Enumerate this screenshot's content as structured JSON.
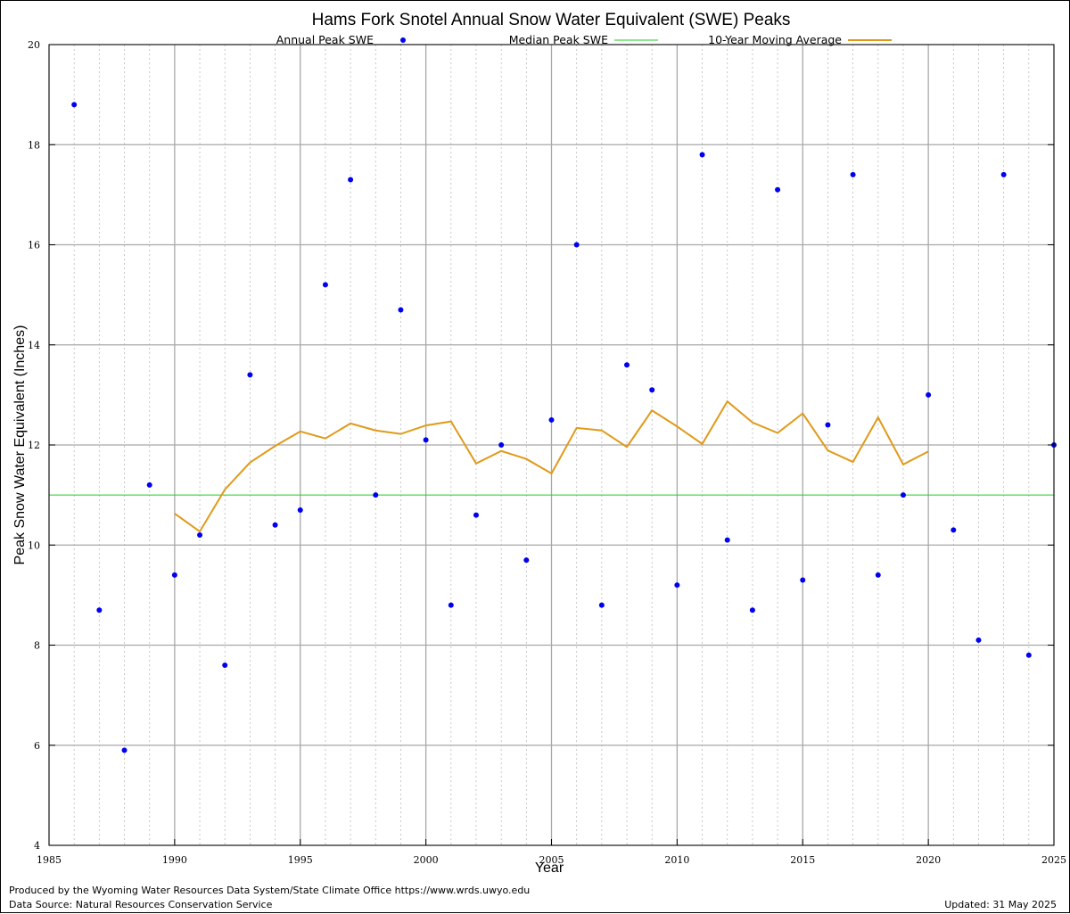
{
  "chart_data": {
    "type": "scatter",
    "title": "Hams Fork Snotel Annual Snow Water Equivalent (SWE) Peaks",
    "xlabel": "Year",
    "ylabel": "Peak Snow Water Equivalent (Inches)",
    "xlim": [
      1985,
      2025
    ],
    "ylim": [
      4,
      20
    ],
    "x_major_ticks": [
      1985,
      1990,
      1995,
      2000,
      2005,
      2010,
      2015,
      2020,
      2025
    ],
    "x_tick_labels": [
      "1985",
      "1990",
      "1995",
      "2000",
      "2005",
      "2010",
      "2015",
      "2020",
      "2025"
    ],
    "y_ticks": [
      4,
      6,
      8,
      10,
      12,
      14,
      16,
      18,
      20
    ],
    "y_tick_labels": [
      "4",
      "6",
      "8",
      "10",
      "12",
      "14",
      "16",
      "18",
      "20"
    ],
    "grid": "on",
    "legend_position": "top",
    "series": [
      {
        "name": "Annual Peak SWE",
        "type": "scatter",
        "color": "#0000ee",
        "points": [
          [
            1986,
            18.8
          ],
          [
            1987,
            8.7
          ],
          [
            1988,
            5.9
          ],
          [
            1989,
            11.2
          ],
          [
            1990,
            9.4
          ],
          [
            1991,
            10.2
          ],
          [
            1992,
            7.6
          ],
          [
            1993,
            13.4
          ],
          [
            1994,
            10.4
          ],
          [
            1995,
            10.7
          ],
          [
            1996,
            15.2
          ],
          [
            1997,
            17.3
          ],
          [
            1998,
            11.0
          ],
          [
            1999,
            14.7
          ],
          [
            2000,
            12.1
          ],
          [
            2001,
            8.8
          ],
          [
            2002,
            10.6
          ],
          [
            2003,
            12.0
          ],
          [
            2004,
            9.7
          ],
          [
            2005,
            12.5
          ],
          [
            2006,
            16.0
          ],
          [
            2007,
            8.8
          ],
          [
            2008,
            13.6
          ],
          [
            2009,
            13.1
          ],
          [
            2010,
            9.2
          ],
          [
            2011,
            17.8
          ],
          [
            2012,
            10.1
          ],
          [
            2013,
            8.7
          ],
          [
            2014,
            17.1
          ],
          [
            2015,
            9.3
          ],
          [
            2016,
            12.4
          ],
          [
            2017,
            17.4
          ],
          [
            2018,
            9.4
          ],
          [
            2019,
            11.0
          ],
          [
            2020,
            13.0
          ],
          [
            2021,
            10.3
          ],
          [
            2022,
            8.1
          ],
          [
            2023,
            17.4
          ],
          [
            2024,
            7.8
          ],
          [
            2025,
            12.0
          ]
        ]
      },
      {
        "name": "Median Peak SWE",
        "type": "line",
        "color": "#22cc22",
        "points": [
          [
            1985,
            11.0
          ],
          [
            2025,
            11.0
          ]
        ]
      },
      {
        "name": "10-Year Moving Average",
        "type": "line",
        "color": "#e09a1a",
        "points": [
          [
            1990,
            10.63
          ],
          [
            1991,
            10.27
          ],
          [
            1992,
            11.11
          ],
          [
            1993,
            11.65
          ],
          [
            1994,
            11.98
          ],
          [
            1995,
            12.27
          ],
          [
            1996,
            12.13
          ],
          [
            1997,
            12.43
          ],
          [
            1998,
            12.29
          ],
          [
            1999,
            12.22
          ],
          [
            2000,
            12.39
          ],
          [
            2001,
            12.47
          ],
          [
            2002,
            11.63
          ],
          [
            2003,
            11.88
          ],
          [
            2004,
            11.72
          ],
          [
            2005,
            11.43
          ],
          [
            2006,
            12.34
          ],
          [
            2007,
            12.29
          ],
          [
            2008,
            11.96
          ],
          [
            2009,
            12.69
          ],
          [
            2010,
            12.37
          ],
          [
            2011,
            12.02
          ],
          [
            2012,
            12.87
          ],
          [
            2013,
            12.45
          ],
          [
            2014,
            12.24
          ],
          [
            2015,
            12.63
          ],
          [
            2016,
            11.89
          ],
          [
            2017,
            11.66
          ],
          [
            2018,
            12.55
          ],
          [
            2019,
            11.61
          ],
          [
            2020,
            11.87
          ]
        ]
      }
    ]
  },
  "footer": {
    "credit": "Produced by the Wyoming Water Resources Data System/State Climate Office https://www.wrds.uwyo.edu",
    "source": "Data Source: Natural Resources Conservation Service",
    "updated": "Updated: 31 May 2025"
  }
}
